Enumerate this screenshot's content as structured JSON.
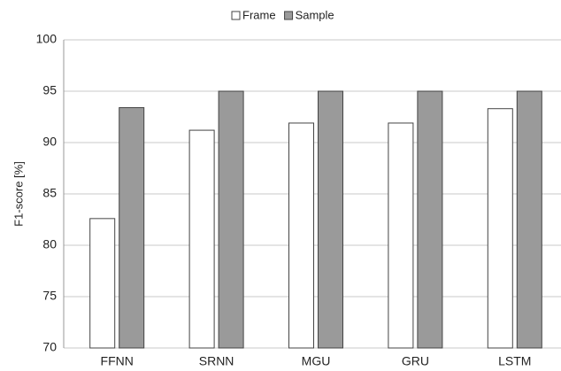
{
  "chart_data": {
    "type": "bar",
    "y_label": "F1-score [%]",
    "categories": [
      "FFNN",
      "SRNN",
      "MGU",
      "GRU",
      "LSTM"
    ],
    "series": [
      {
        "name": "Frame",
        "color": "#ffffff",
        "values": [
          82.6,
          91.2,
          91.9,
          91.9,
          93.3
        ]
      },
      {
        "name": "Sample",
        "color": "#9a9a9a",
        "values": [
          93.4,
          95,
          95,
          95,
          95
        ]
      }
    ],
    "ylim": [
      70,
      100
    ],
    "yticks": [
      70,
      75,
      80,
      85,
      90,
      95,
      100
    ],
    "grid": true,
    "legend": "top"
  }
}
